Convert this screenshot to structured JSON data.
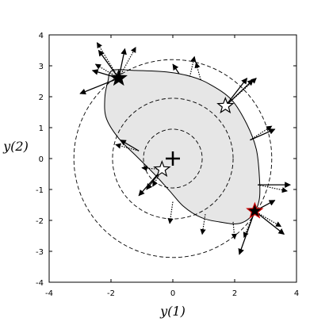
{
  "chart_data": {
    "type": "scatter",
    "xlabel": "y(1)",
    "ylabel": "y(2)",
    "xlim": [
      -4,
      4
    ],
    "ylim": [
      -4,
      4
    ],
    "xticks": [
      "-4",
      "-2",
      "0",
      "2",
      "4"
    ],
    "yticks": [
      "-4",
      "-3",
      "-2",
      "-1",
      "0",
      "1",
      "2",
      "3",
      "4"
    ],
    "grid": false,
    "center_marker": {
      "type": "plus",
      "x": 0.0,
      "y": 0.0
    },
    "dashed_circles": [
      {
        "cx": 0.0,
        "cy": 0.0,
        "r": 0.95
      },
      {
        "cx": 0.0,
        "cy": 0.0,
        "r": 1.95
      },
      {
        "cx": 0.0,
        "cy": 0.0,
        "r": 3.2
      }
    ],
    "region": {
      "fill": "#e6e6e6",
      "outline": [
        [
          -1.95,
          2.85
        ],
        [
          -1.2,
          2.85
        ],
        [
          -0.2,
          2.8
        ],
        [
          0.6,
          2.65
        ],
        [
          1.2,
          2.4
        ],
        [
          1.9,
          1.9
        ],
        [
          2.4,
          1.1
        ],
        [
          2.7,
          0.3
        ],
        [
          2.8,
          -0.6
        ],
        [
          2.8,
          -1.3
        ],
        [
          2.6,
          -1.8
        ],
        [
          2.15,
          -2.1
        ],
        [
          1.5,
          -2.05
        ],
        [
          0.9,
          -1.9
        ],
        [
          0.35,
          -1.55
        ],
        [
          -0.1,
          -1.05
        ],
        [
          -0.6,
          -0.5
        ],
        [
          -1.2,
          0.1
        ],
        [
          -1.75,
          0.65
        ],
        [
          -2.15,
          1.3
        ],
        [
          -2.2,
          1.95
        ],
        [
          -2.1,
          2.5
        ]
      ]
    },
    "stars": [
      {
        "x": -1.75,
        "y": 2.6,
        "fill": "#000000",
        "stroke": "#000000"
      },
      {
        "x": 1.7,
        "y": 1.7,
        "fill": "#ffffff",
        "stroke": "#000000"
      },
      {
        "x": -0.35,
        "y": -0.35,
        "fill": "#ffffff",
        "stroke": "#000000"
      },
      {
        "x": 2.65,
        "y": -1.7,
        "fill": "#000000",
        "stroke": "#cc0000"
      }
    ],
    "solid_arrows": [
      {
        "x0": -1.75,
        "y0": 2.6,
        "x1": -2.4,
        "y1": 3.5
      },
      {
        "x0": -1.75,
        "y0": 2.6,
        "x1": -3.0,
        "y1": 2.1
      },
      {
        "x0": -1.75,
        "y0": 2.6,
        "x1": -1.55,
        "y1": 3.55
      },
      {
        "x0": -1.75,
        "y0": 2.6,
        "x1": -2.6,
        "y1": 2.85
      },
      {
        "x0": 1.7,
        "y0": 1.7,
        "x1": 2.6,
        "y1": 2.55
      },
      {
        "x0": 1.7,
        "y0": 1.7,
        "x1": 2.4,
        "y1": 2.6
      },
      {
        "x0": -0.35,
        "y0": -0.35,
        "x1": -1.1,
        "y1": -1.2
      },
      {
        "x0": -0.35,
        "y0": -0.35,
        "x1": -0.85,
        "y1": -1.0
      },
      {
        "x0": 2.65,
        "y0": -1.7,
        "x1": 3.6,
        "y1": -2.45
      },
      {
        "x0": 2.65,
        "y0": -1.7,
        "x1": 2.15,
        "y1": -3.1
      },
      {
        "x0": 2.65,
        "y0": -1.7,
        "x1": 3.3,
        "y1": -1.35
      },
      {
        "x0": 0.2,
        "y0": 2.75,
        "x1": 0.0,
        "y1": 3.05
      },
      {
        "x0": 2.5,
        "y0": 0.6,
        "x1": 3.3,
        "y1": 0.95
      },
      {
        "x0": 2.75,
        "y0": -0.85,
        "x1": 3.8,
        "y1": -0.85
      },
      {
        "x0": -1.1,
        "y0": 0.25,
        "x1": -1.7,
        "y1": 0.6
      }
    ],
    "dotted_arrows": [
      {
        "x0": -1.75,
        "y0": 2.6,
        "x1": -2.45,
        "y1": 3.75
      },
      {
        "x0": -1.75,
        "y0": 2.6,
        "x1": -1.2,
        "y1": 3.6
      },
      {
        "x0": -1.75,
        "y0": 2.6,
        "x1": -2.5,
        "y1": 3.05
      },
      {
        "x0": 0.55,
        "y0": 2.65,
        "x1": 0.7,
        "y1": 3.3
      },
      {
        "x0": 0.9,
        "y0": 2.55,
        "x1": 0.75,
        "y1": 3.1
      },
      {
        "x0": 1.7,
        "y0": 1.7,
        "x1": 2.7,
        "y1": 2.6
      },
      {
        "x0": 2.5,
        "y0": 0.6,
        "x1": 3.2,
        "y1": 1.05
      },
      {
        "x0": 2.75,
        "y0": -0.85,
        "x1": 3.7,
        "y1": -1.05
      },
      {
        "x0": 2.65,
        "y0": -1.7,
        "x1": 3.5,
        "y1": -2.2
      },
      {
        "x0": 2.65,
        "y0": -1.7,
        "x1": 2.3,
        "y1": -2.55
      },
      {
        "x0": -0.35,
        "y0": -0.35,
        "x1": -1.0,
        "y1": -0.3
      },
      {
        "x0": -0.35,
        "y0": -0.35,
        "x1": -0.65,
        "y1": -0.9
      },
      {
        "x0": -1.1,
        "y0": 0.25,
        "x1": -1.85,
        "y1": 0.45
      },
      {
        "x0": 1.05,
        "y0": -1.8,
        "x1": 0.95,
        "y1": -2.45
      },
      {
        "x0": 1.95,
        "y0": -2.05,
        "x1": 2.0,
        "y1": -2.6
      },
      {
        "x0": 0.0,
        "y0": -1.4,
        "x1": -0.1,
        "y1": -2.1
      }
    ]
  }
}
